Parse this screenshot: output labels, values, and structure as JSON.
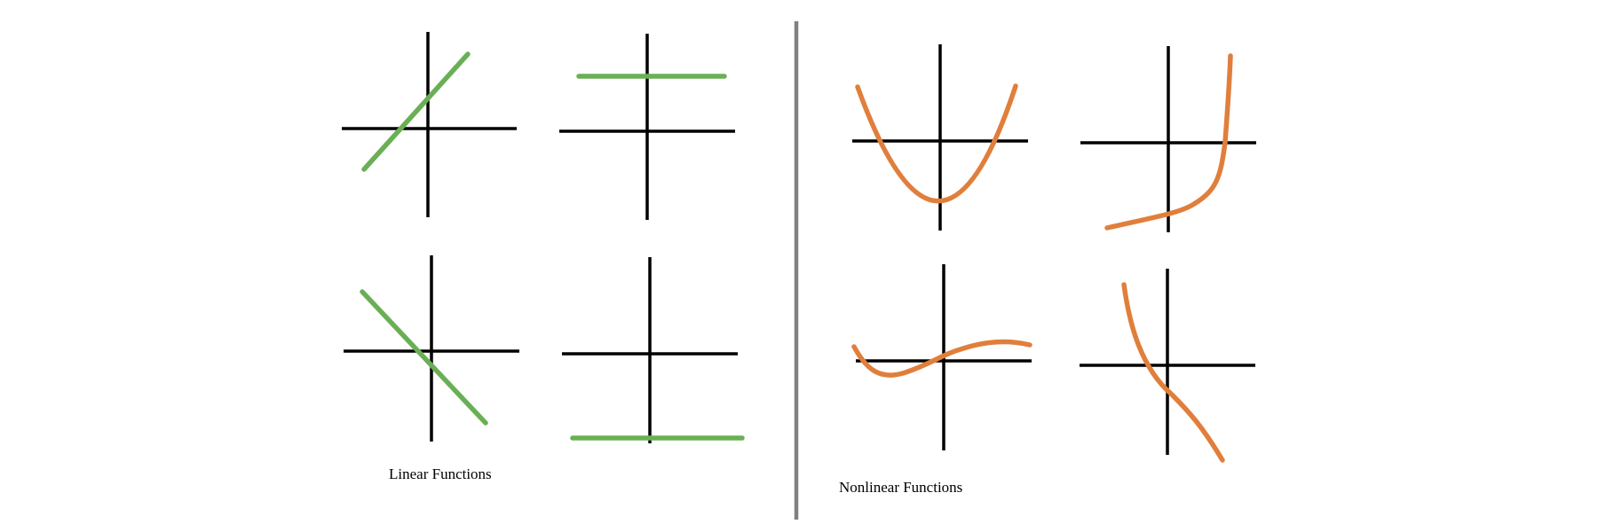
{
  "colors": {
    "axes": "#000000",
    "linear": "#6aaf55",
    "nonlinear": "#e07f3c",
    "divider": "#808080"
  },
  "linear": {
    "caption": "Linear Functions",
    "graphs": [
      {
        "name": "increasing-line",
        "icon": "linear-increasing-graph-icon"
      },
      {
        "name": "constant-positive-line",
        "icon": "linear-constant-positive-graph-icon"
      },
      {
        "name": "decreasing-line",
        "icon": "linear-decreasing-graph-icon"
      },
      {
        "name": "constant-negative-line",
        "icon": "linear-constant-negative-graph-icon"
      }
    ]
  },
  "nonlinear": {
    "caption": "Nonlinear Functions",
    "graphs": [
      {
        "name": "parabola-curve",
        "icon": "parabola-graph-icon"
      },
      {
        "name": "exponential-curve",
        "icon": "exponential-graph-icon"
      },
      {
        "name": "cubic-curve",
        "icon": "cubic-graph-icon"
      },
      {
        "name": "decreasing-curve",
        "icon": "decreasing-curve-graph-icon"
      }
    ]
  }
}
